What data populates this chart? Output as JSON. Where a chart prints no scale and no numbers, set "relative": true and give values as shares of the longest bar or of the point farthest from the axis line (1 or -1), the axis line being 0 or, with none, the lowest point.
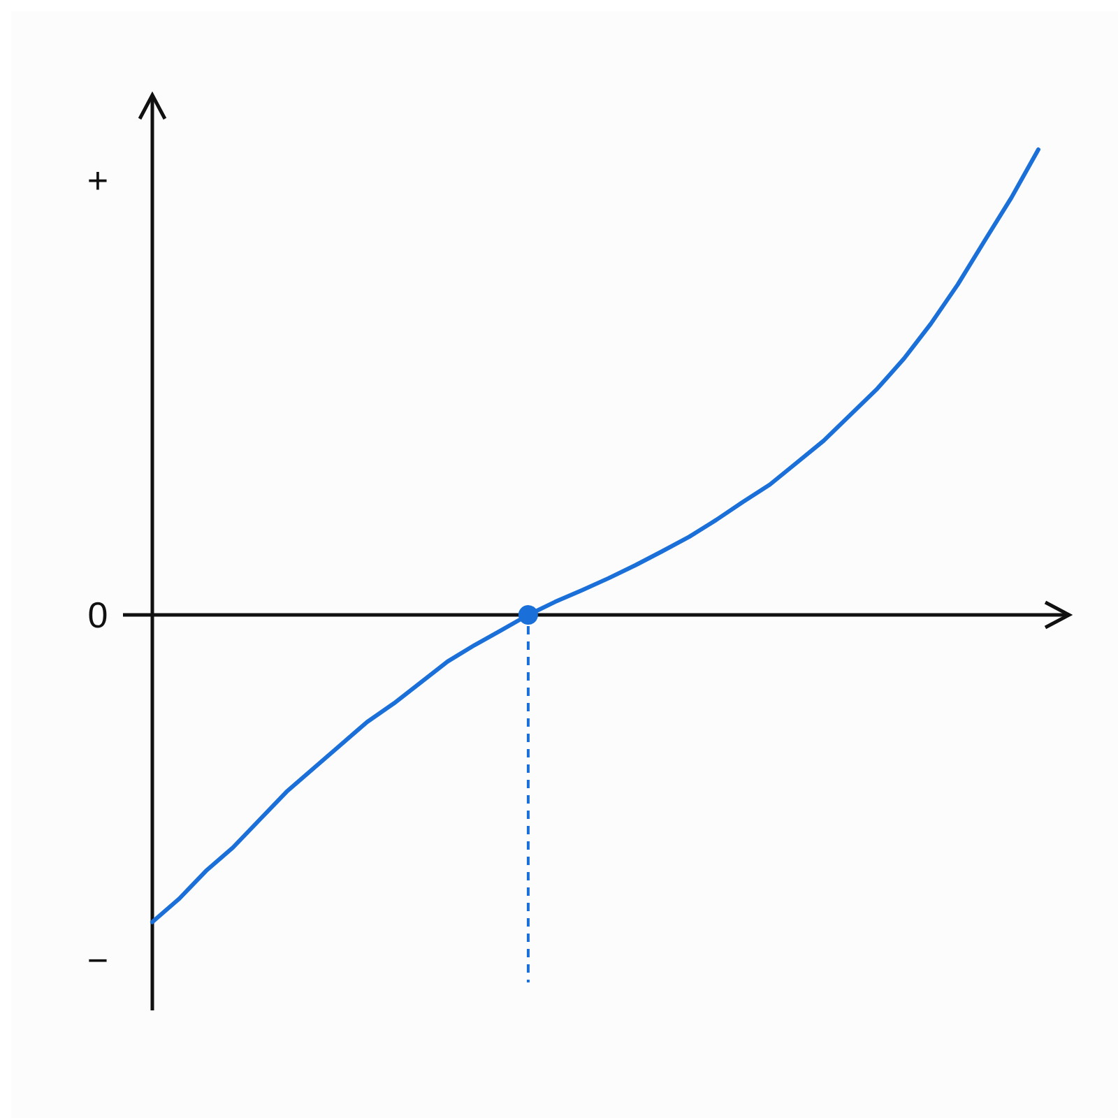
{
  "chart_data": {
    "type": "line",
    "relative": true,
    "annotations": [
      "+",
      "0",
      "−"
    ],
    "tick_labels": "y",
    "categories": [
      null,
      null,
      null,
      null,
      null,
      null,
      null,
      null,
      null,
      null,
      null,
      null,
      null,
      null,
      null,
      null,
      null,
      null,
      null,
      null,
      null,
      null,
      null,
      null,
      null,
      null,
      null,
      null,
      null,
      null,
      null,
      null,
      null,
      null
    ],
    "series": [
      {
        "color": "#1a6fd8",
        "line_style": "solid",
        "values": [
          -0.66,
          -0.61,
          -0.55,
          -0.5,
          -0.44,
          -0.38,
          -0.33,
          -0.28,
          -0.23,
          -0.19,
          -0.145,
          -0.1,
          -0.065,
          -0.033,
          0,
          0.028,
          0.053,
          0.079,
          0.107,
          0.137,
          0.168,
          0.204,
          0.243,
          0.28,
          0.327,
          0.374,
          0.43,
          0.486,
          0.551,
          0.626,
          0.71,
          0.804,
          0.897,
          1
        ]
      }
    ]
  }
}
